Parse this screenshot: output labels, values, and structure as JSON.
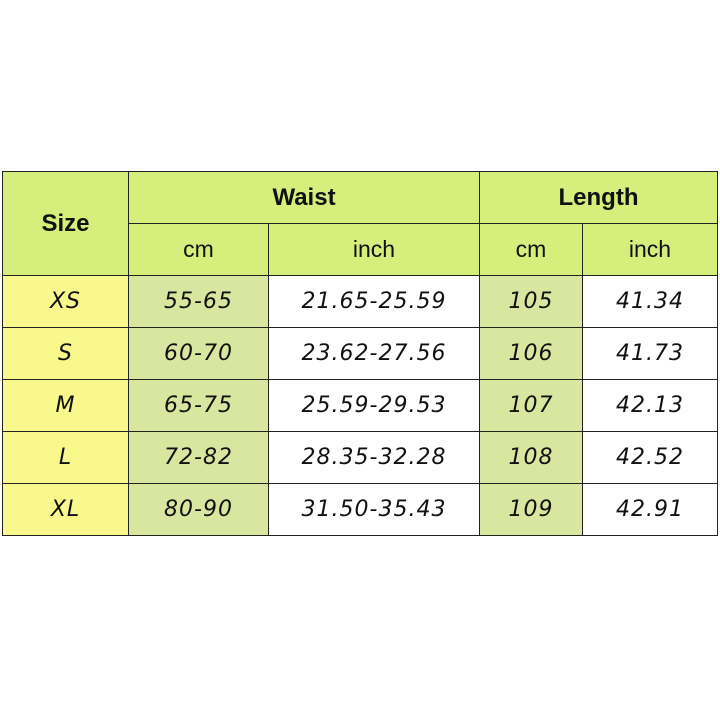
{
  "headers": {
    "size": "Size",
    "waist": "Waist",
    "length": "Length",
    "waist_cm": "cm",
    "waist_inch": "inch",
    "length_cm": "cm",
    "length_inch": "inch"
  },
  "colors": {
    "header": "#d5ee7c",
    "size_column": "#f8f88c",
    "cm_column": "#d9e6a0"
  },
  "rows": [
    {
      "size": "XS",
      "waist_cm": "55-65",
      "waist_inch": "21.65-25.59",
      "length_cm": "105",
      "length_inch": "41.34"
    },
    {
      "size": "S",
      "waist_cm": "60-70",
      "waist_inch": "23.62-27.56",
      "length_cm": "106",
      "length_inch": "41.73"
    },
    {
      "size": "M",
      "waist_cm": "65-75",
      "waist_inch": "25.59-29.53",
      "length_cm": "107",
      "length_inch": "42.13"
    },
    {
      "size": "L",
      "waist_cm": "72-82",
      "waist_inch": "28.35-32.28",
      "length_cm": "108",
      "length_inch": "42.52"
    },
    {
      "size": "XL",
      "waist_cm": "80-90",
      "waist_inch": "31.50-35.43",
      "length_cm": "109",
      "length_inch": "42.91"
    }
  ]
}
